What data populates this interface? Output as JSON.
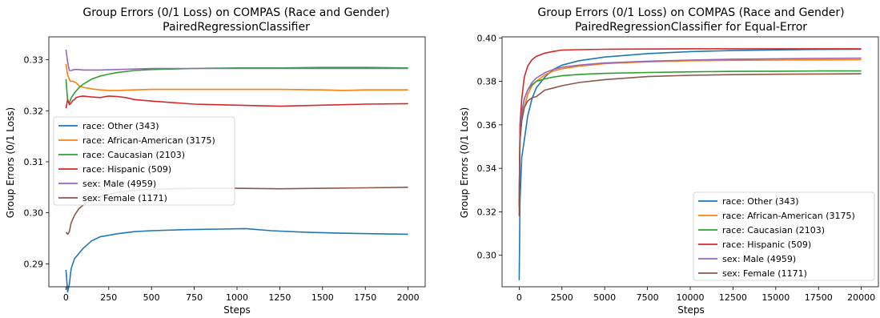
{
  "chart_data": [
    {
      "type": "line",
      "title": "Group Errors (0/1 Loss) on COMPAS (Race and Gender)",
      "subtitle": "PairedRegressionClassifier",
      "xlabel": "Steps",
      "ylabel": "Group Errors (0/1 Loss)",
      "xlim": [
        -100,
        2100
      ],
      "ylim": [
        0.2855,
        0.3345
      ],
      "xticks": [
        0,
        250,
        500,
        750,
        1000,
        1250,
        1500,
        1750,
        2000
      ],
      "yticks": [
        0.29,
        0.3,
        0.31,
        0.32,
        0.33
      ],
      "legend_position": "center-left",
      "grid": false,
      "series": [
        {
          "name": "race: Other  (343)",
          "color": "#1f77b4",
          "x": [
            0,
            10,
            20,
            30,
            50,
            75,
            100,
            150,
            200,
            300,
            400,
            500,
            700,
            900,
            1050,
            1200,
            1400,
            1600,
            1800,
            2000
          ],
          "y": [
            0.2888,
            0.2845,
            0.286,
            0.289,
            0.291,
            0.292,
            0.293,
            0.2945,
            0.2953,
            0.2959,
            0.2963,
            0.2965,
            0.2967,
            0.2968,
            0.2969,
            0.2965,
            0.2962,
            0.296,
            0.2959,
            0.2958
          ]
        },
        {
          "name": "race: African-American  (3175)",
          "color": "#ff7f0e",
          "x": [
            0,
            10,
            25,
            40,
            60,
            80,
            100,
            150,
            200,
            250,
            300,
            400,
            500,
            750,
            1000,
            1250,
            1500,
            1625,
            1750,
            2000
          ],
          "y": [
            0.3292,
            0.327,
            0.3258,
            0.3258,
            0.3255,
            0.3248,
            0.3246,
            0.3243,
            0.3241,
            0.324,
            0.324,
            0.3241,
            0.3242,
            0.3242,
            0.3242,
            0.3242,
            0.3241,
            0.324,
            0.3241,
            0.3241
          ]
        },
        {
          "name": "race: Caucasian  (2103)",
          "color": "#2ca02c",
          "x": [
            0,
            10,
            20,
            30,
            50,
            75,
            100,
            150,
            200,
            250,
            300,
            400,
            500,
            750,
            1000,
            1250,
            1500,
            1750,
            2000
          ],
          "y": [
            0.3262,
            0.322,
            0.3215,
            0.3225,
            0.3235,
            0.3245,
            0.3252,
            0.3262,
            0.3268,
            0.3272,
            0.3275,
            0.3279,
            0.3281,
            0.3283,
            0.3284,
            0.3284,
            0.3285,
            0.3285,
            0.3284
          ]
        },
        {
          "name": "race: Hispanic  (509)",
          "color": "#d62728",
          "x": [
            0,
            10,
            20,
            30,
            40,
            50,
            60,
            80,
            100,
            150,
            200,
            250,
            300,
            350,
            400,
            500,
            750,
            1000,
            1250,
            1500,
            1750,
            2000
          ],
          "y": [
            0.3205,
            0.3222,
            0.3212,
            0.3215,
            0.322,
            0.3222,
            0.3226,
            0.3228,
            0.3229,
            0.3227,
            0.3226,
            0.3229,
            0.3228,
            0.3226,
            0.3222,
            0.3219,
            0.3213,
            0.3211,
            0.3209,
            0.3211,
            0.3213,
            0.3214
          ]
        },
        {
          "name": "sex: Male  (4959)",
          "color": "#9467bd",
          "x": [
            0,
            10,
            20,
            30,
            50,
            75,
            100,
            150,
            200,
            300,
            500,
            750,
            1000,
            1250,
            1500,
            1750,
            2000
          ],
          "y": [
            0.332,
            0.3295,
            0.3279,
            0.3279,
            0.3281,
            0.3281,
            0.328,
            0.328,
            0.328,
            0.3281,
            0.3283,
            0.3283,
            0.3283,
            0.3283,
            0.3283,
            0.3283,
            0.3283
          ]
        },
        {
          "name": "sex: Female  (1171)",
          "color": "#8c564b",
          "x": [
            0,
            10,
            20,
            30,
            50,
            75,
            100,
            150,
            200,
            250,
            300,
            400,
            500,
            750,
            1000,
            1250,
            1500,
            1750,
            2000
          ],
          "y": [
            0.2962,
            0.2958,
            0.2963,
            0.298,
            0.2995,
            0.3008,
            0.3015,
            0.3025,
            0.3032,
            0.3036,
            0.304,
            0.3044,
            0.3046,
            0.3048,
            0.3048,
            0.3047,
            0.3048,
            0.3049,
            0.305
          ]
        }
      ]
    },
    {
      "type": "line",
      "title": "Group Errors (0/1 Loss) on COMPAS (Race and Gender)",
      "subtitle": "PairedRegressionClassifier for Equal-Error",
      "xlabel": "Steps",
      "ylabel": "Group Errors (0/1 Loss)",
      "xlim": [
        -1000,
        21000
      ],
      "ylim": [
        0.2855,
        0.4005
      ],
      "xticks": [
        0,
        2500,
        5000,
        7500,
        10000,
        12500,
        15000,
        17500,
        20000
      ],
      "yticks": [
        0.3,
        0.32,
        0.34,
        0.36,
        0.38,
        0.4
      ],
      "legend_position": "lower-right",
      "grid": false,
      "series": [
        {
          "name": "race: Other  (343)",
          "color": "#1f77b4",
          "x": [
            0,
            50,
            150,
            300,
            500,
            750,
            1000,
            1500,
            2000,
            2500,
            3500,
            5000,
            7500,
            10000,
            12500,
            15000,
            17500,
            20000
          ],
          "y": [
            0.2885,
            0.325,
            0.345,
            0.353,
            0.364,
            0.372,
            0.377,
            0.382,
            0.3855,
            0.3875,
            0.3895,
            0.3912,
            0.3928,
            0.3937,
            0.3942,
            0.3945,
            0.3947,
            0.3948
          ]
        },
        {
          "name": "race: African-American  (3175)",
          "color": "#ff7f0e",
          "x": [
            0,
            50,
            150,
            300,
            500,
            750,
            1000,
            1500,
            2000,
            2500,
            3500,
            5000,
            7500,
            10000,
            12500,
            15000,
            17500,
            20000
          ],
          "y": [
            0.33,
            0.353,
            0.362,
            0.368,
            0.374,
            0.378,
            0.38,
            0.383,
            0.3848,
            0.3858,
            0.387,
            0.3882,
            0.389,
            0.3895,
            0.3897,
            0.3898,
            0.3899,
            0.39
          ]
        },
        {
          "name": "race: Caucasian  (2103)",
          "color": "#2ca02c",
          "x": [
            0,
            50,
            150,
            300,
            500,
            750,
            1000,
            1500,
            2000,
            2500,
            3500,
            5000,
            7500,
            10000,
            12500,
            15000,
            17500,
            20000
          ],
          "y": [
            0.322,
            0.355,
            0.365,
            0.372,
            0.376,
            0.3785,
            0.38,
            0.3812,
            0.382,
            0.3826,
            0.3832,
            0.3837,
            0.3841,
            0.3844,
            0.3846,
            0.3847,
            0.3848,
            0.3848
          ]
        },
        {
          "name": "race: Hispanic  (509)",
          "color": "#d62728",
          "x": [
            0,
            50,
            150,
            300,
            500,
            750,
            1000,
            1500,
            2000,
            2500,
            3500,
            5000,
            7500,
            10000,
            12500,
            15000,
            17500,
            20000
          ],
          "y": [
            0.323,
            0.36,
            0.372,
            0.382,
            0.387,
            0.39,
            0.3915,
            0.393,
            0.3938,
            0.3944,
            0.3946,
            0.3948,
            0.3949,
            0.395,
            0.395,
            0.395,
            0.395,
            0.395
          ]
        },
        {
          "name": "sex: Male  (4959)",
          "color": "#9467bd",
          "x": [
            0,
            50,
            150,
            300,
            500,
            750,
            1000,
            1500,
            2000,
            2500,
            3500,
            5000,
            7500,
            10000,
            12500,
            15000,
            17500,
            20000
          ],
          "y": [
            0.325,
            0.355,
            0.366,
            0.372,
            0.376,
            0.3795,
            0.3815,
            0.384,
            0.3855,
            0.3865,
            0.3875,
            0.3885,
            0.3893,
            0.3898,
            0.3902,
            0.3904,
            0.3906,
            0.3907
          ]
        },
        {
          "name": "sex: Female  (1171)",
          "color": "#8c564b",
          "x": [
            0,
            50,
            150,
            300,
            500,
            750,
            1000,
            1250,
            1500,
            2000,
            2500,
            3500,
            5000,
            7500,
            10000,
            12500,
            15000,
            17500,
            20000
          ],
          "y": [
            0.318,
            0.353,
            0.362,
            0.368,
            0.371,
            0.3725,
            0.373,
            0.3745,
            0.376,
            0.377,
            0.378,
            0.3795,
            0.3808,
            0.3822,
            0.3828,
            0.3831,
            0.3833,
            0.3834,
            0.3835
          ]
        }
      ]
    }
  ]
}
